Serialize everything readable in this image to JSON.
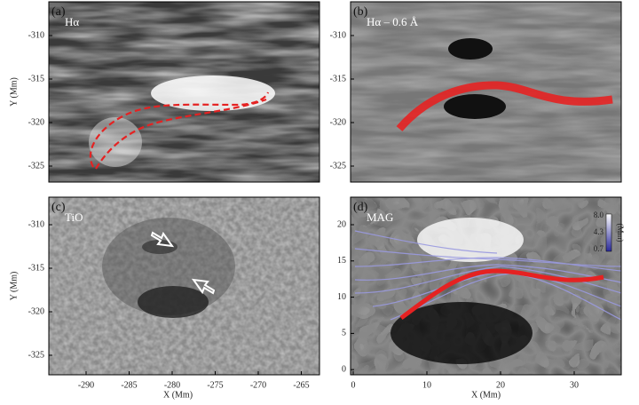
{
  "panels": [
    {
      "label": "(a)",
      "title": "Hα",
      "yticks": [
        "-310",
        "-315",
        "-320",
        "-325"
      ],
      "ylabel": "Y (Mm)"
    },
    {
      "label": "(b)",
      "title": "Hα – 0.6 Å",
      "yticks": [
        "-310",
        "-315",
        "-320",
        "-325"
      ]
    },
    {
      "label": "(c)",
      "title": "TiO",
      "yticks": [
        "-310",
        "-315",
        "-320",
        "-325"
      ],
      "ylabel": "Y (Mm)",
      "xticks": [
        "-290",
        "-285",
        "-280",
        "-275",
        "-270",
        "-265"
      ],
      "xlabel": "X (Mm)"
    },
    {
      "label": "(d)",
      "title": "MAG",
      "yticks": [
        "20",
        "15",
        "10",
        "5",
        "0"
      ],
      "xticks": [
        "0",
        "10",
        "20",
        "30"
      ],
      "xlabel": "X (Mm)",
      "colorbar": {
        "ticks": [
          "8.0",
          "4.3",
          "0.7"
        ],
        "unit": "(Mm)"
      }
    }
  ]
}
